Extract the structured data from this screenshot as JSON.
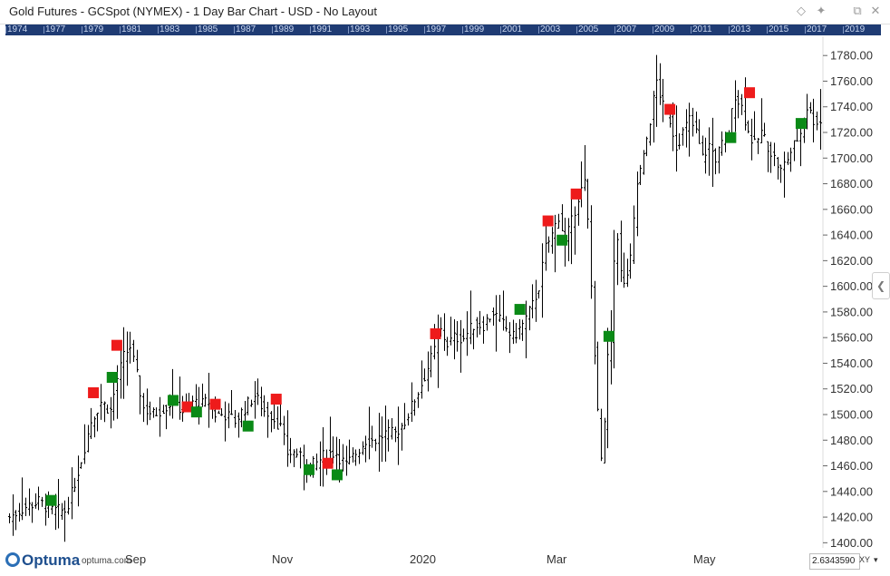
{
  "window": {
    "title": "Gold Futures - GCSpot (NYMEX) - 1 Day Bar Chart - USD - No Layout"
  },
  "toolbar_icons": [
    "diamond-icon",
    "pin-icon",
    "cascade-window-icon",
    "close-icon"
  ],
  "toolbar_glyphs": [
    "◇",
    "✦",
    "⧉",
    "✕"
  ],
  "year_strip": [
    "1974",
    "1977",
    "1979",
    "1981",
    "1983",
    "1985",
    "1987",
    "1989",
    "1991",
    "1993",
    "1995",
    "1997",
    "1999",
    "2001",
    "2003",
    "2005",
    "2007",
    "2009",
    "2011",
    "2013",
    "2015",
    "2017",
    "2019"
  ],
  "footer": {
    "logo_text": "Optuma",
    "logo_url": "optuma.com",
    "x_labels": [
      "Sep",
      "Nov",
      "2020",
      "Mar",
      "May"
    ],
    "scale_value": "2.6343590",
    "xy_label": "XY",
    "xy_arrow": "▾"
  },
  "side_arrow": "❮",
  "colors": {
    "year_strip_bg": "#1f3b73",
    "bar": "#000000",
    "buy_marker": "#0a8a16",
    "sell_marker": "#ee1b1b",
    "axis_text": "#333333"
  },
  "chart_data": {
    "type": "bar",
    "instrument": "Gold Futures - GCSpot (NYMEX)",
    "interval": "1 Day",
    "currency": "USD",
    "y_axis_side": "right",
    "ylim": [
      1396,
      1795
    ],
    "y_ticks": [
      "1400.00",
      "1420.00",
      "1440.00",
      "1460.00",
      "1480.00",
      "1500.00",
      "1520.00",
      "1540.00",
      "1560.00",
      "1580.00",
      "1600.00",
      "1620.00",
      "1640.00",
      "1660.00",
      "1680.00",
      "1700.00",
      "1720.00",
      "1740.00",
      "1760.00",
      "1780.00"
    ],
    "x_tick_labels": [
      "Sep",
      "Nov",
      "2020",
      "Mar",
      "May"
    ],
    "grid": false,
    "anchors": [
      [
        0,
        1420
      ],
      [
        5,
        1428
      ],
      [
        9,
        1432
      ],
      [
        13,
        1425
      ],
      [
        17,
        1425
      ],
      [
        19,
        1438
      ],
      [
        22,
        1465
      ],
      [
        25,
        1495
      ],
      [
        28,
        1510
      ],
      [
        31,
        1503
      ],
      [
        33,
        1528
      ],
      [
        35,
        1545
      ],
      [
        37,
        1553
      ],
      [
        39,
        1530
      ],
      [
        41,
        1505
      ],
      [
        44,
        1500
      ],
      [
        47,
        1505
      ],
      [
        50,
        1510
      ],
      [
        53,
        1503
      ],
      [
        56,
        1510
      ],
      [
        59,
        1508
      ],
      [
        61,
        1510
      ],
      [
        63,
        1500
      ],
      [
        66,
        1500
      ],
      [
        69,
        1495
      ],
      [
        72,
        1505
      ],
      [
        75,
        1515
      ],
      [
        78,
        1503
      ],
      [
        80,
        1500
      ],
      [
        83,
        1490
      ],
      [
        85,
        1470
      ],
      [
        88,
        1470
      ],
      [
        91,
        1458
      ],
      [
        94,
        1462
      ],
      [
        97,
        1470
      ],
      [
        100,
        1470
      ],
      [
        103,
        1460
      ],
      [
        106,
        1470
      ],
      [
        109,
        1480
      ],
      [
        112,
        1480
      ],
      [
        115,
        1485
      ],
      [
        118,
        1485
      ],
      [
        121,
        1495
      ],
      [
        124,
        1512
      ],
      [
        127,
        1530
      ],
      [
        130,
        1550
      ],
      [
        132,
        1565
      ],
      [
        134,
        1555
      ],
      [
        136,
        1560
      ],
      [
        139,
        1560
      ],
      [
        142,
        1570
      ],
      [
        145,
        1570
      ],
      [
        148,
        1580
      ],
      [
        151,
        1570
      ],
      [
        154,
        1560
      ],
      [
        157,
        1570
      ],
      [
        160,
        1585
      ],
      [
        162,
        1600
      ],
      [
        164,
        1630
      ],
      [
        166,
        1640
      ],
      [
        168,
        1655
      ],
      [
        170,
        1635
      ],
      [
        172,
        1650
      ],
      [
        174,
        1670
      ],
      [
        176,
        1680
      ],
      [
        177,
        1650
      ],
      [
        178,
        1600
      ],
      [
        179,
        1550
      ],
      [
        180,
        1500
      ],
      [
        181,
        1465
      ],
      [
        182,
        1490
      ],
      [
        183,
        1545
      ],
      [
        184,
        1560
      ],
      [
        185,
        1620
      ],
      [
        186,
        1640
      ],
      [
        187,
        1610
      ],
      [
        188,
        1600
      ],
      [
        190,
        1620
      ],
      [
        192,
        1680
      ],
      [
        194,
        1700
      ],
      [
        196,
        1730
      ],
      [
        198,
        1760
      ],
      [
        200,
        1740
      ],
      [
        202,
        1730
      ],
      [
        204,
        1710
      ],
      [
        206,
        1720
      ],
      [
        208,
        1730
      ],
      [
        210,
        1720
      ],
      [
        212,
        1700
      ],
      [
        214,
        1710
      ],
      [
        216,
        1700
      ],
      [
        218,
        1710
      ],
      [
        220,
        1720
      ],
      [
        222,
        1750
      ],
      [
        224,
        1740
      ],
      [
        226,
        1720
      ],
      [
        228,
        1710
      ],
      [
        230,
        1720
      ],
      [
        232,
        1710
      ],
      [
        234,
        1700
      ],
      [
        236,
        1690
      ],
      [
        238,
        1700
      ],
      [
        240,
        1710
      ],
      [
        242,
        1720
      ],
      [
        244,
        1740
      ],
      [
        246,
        1730
      ],
      [
        248,
        1728
      ]
    ],
    "markers": [
      {
        "type": "buy",
        "index": 9,
        "price": 1433
      },
      {
        "type": "sell",
        "index": 18,
        "price": 1517
      },
      {
        "type": "buy",
        "index": 22,
        "price": 1529
      },
      {
        "type": "sell",
        "index": 23,
        "price": 1554
      },
      {
        "type": "buy",
        "index": 35,
        "price": 1511
      },
      {
        "type": "sell",
        "index": 38,
        "price": 1506
      },
      {
        "type": "buy",
        "index": 40,
        "price": 1502
      },
      {
        "type": "sell",
        "index": 44,
        "price": 1508
      },
      {
        "type": "buy",
        "index": 51,
        "price": 1491
      },
      {
        "type": "sell",
        "index": 57,
        "price": 1512
      },
      {
        "type": "buy",
        "index": 64,
        "price": 1457
      },
      {
        "type": "sell",
        "index": 68,
        "price": 1462
      },
      {
        "type": "buy",
        "index": 70,
        "price": 1453
      },
      {
        "type": "sell",
        "index": 91,
        "price": 1563
      },
      {
        "type": "buy",
        "index": 109,
        "price": 1582
      },
      {
        "type": "sell",
        "index": 115,
        "price": 1651
      },
      {
        "type": "buy",
        "index": 118,
        "price": 1636
      },
      {
        "type": "sell",
        "index": 121,
        "price": 1672
      },
      {
        "type": "buy",
        "index": 128,
        "price": 1561
      },
      {
        "type": "sell",
        "index": 141,
        "price": 1738
      },
      {
        "type": "buy",
        "index": 154,
        "price": 1716
      },
      {
        "type": "sell",
        "index": 158,
        "price": 1751
      },
      {
        "type": "buy",
        "index": 169,
        "price": 1727
      }
    ]
  }
}
